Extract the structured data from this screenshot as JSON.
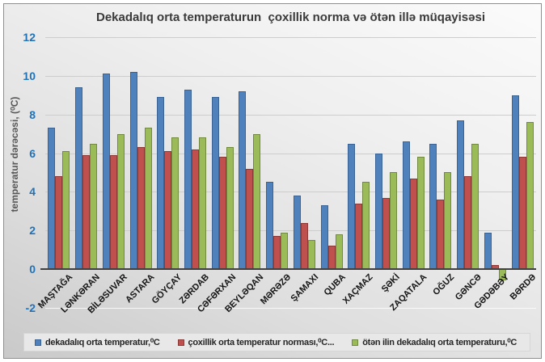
{
  "chart_data": {
    "type": "bar",
    "title": "Dekadalıq orta temperaturun  çoxillik norma və ötən illə müqayisəsi",
    "xlabel": "",
    "ylabel": "temperatur dərəcəsi, (⁰C)",
    "ylim": [
      -2,
      12
    ],
    "yticks": [
      -2,
      0,
      2,
      4,
      6,
      8,
      10,
      12
    ],
    "grid": "horizontal",
    "legend_position": "bottom",
    "axis_tick_color": "#2272b8",
    "categories": [
      "MAŞTAĞA",
      "LƏNKƏRAN",
      "BİLƏSUVAR",
      "ASTARA",
      "GÖYÇAY",
      "ZƏRDAB",
      "CƏFƏRXAN",
      "BEYLƏQAN",
      "MƏRƏZƏ",
      "ŞAMAXI",
      "QUBA",
      "XAÇMAZ",
      "ŞƏKİ",
      "ZAQATALA",
      "OĞUZ",
      "GƏNCƏ",
      "GƏDƏBƏY",
      "BƏRDƏ"
    ],
    "series": [
      {
        "name": "dekadalıq orta temperatur,⁰C",
        "color": "#4F81BD",
        "border_color": "#3a6293",
        "values": [
          7.3,
          9.4,
          10.1,
          10.2,
          8.9,
          9.3,
          8.9,
          9.2,
          4.5,
          3.8,
          3.3,
          6.5,
          6.0,
          6.6,
          6.5,
          7.7,
          1.9,
          9.0
        ]
      },
      {
        "name": "çoxillik orta temperatur norması,⁰C...",
        "color": "#C0504D",
        "border_color": "#8c3a38",
        "values": [
          4.8,
          5.9,
          5.9,
          6.3,
          6.1,
          6.2,
          5.8,
          5.2,
          1.7,
          2.4,
          1.2,
          3.4,
          3.7,
          4.7,
          3.6,
          4.8,
          0.2,
          5.8
        ]
      },
      {
        "name": "ötən ilin dekadalıq orta temperaturu,⁰C",
        "color": "#9BBB59",
        "border_color": "#728a40",
        "values": [
          6.1,
          6.5,
          7.0,
          7.3,
          6.8,
          6.8,
          6.3,
          7.0,
          1.9,
          1.5,
          1.8,
          4.5,
          5.0,
          5.8,
          5.0,
          6.5,
          -0.6,
          7.6
        ]
      }
    ]
  }
}
